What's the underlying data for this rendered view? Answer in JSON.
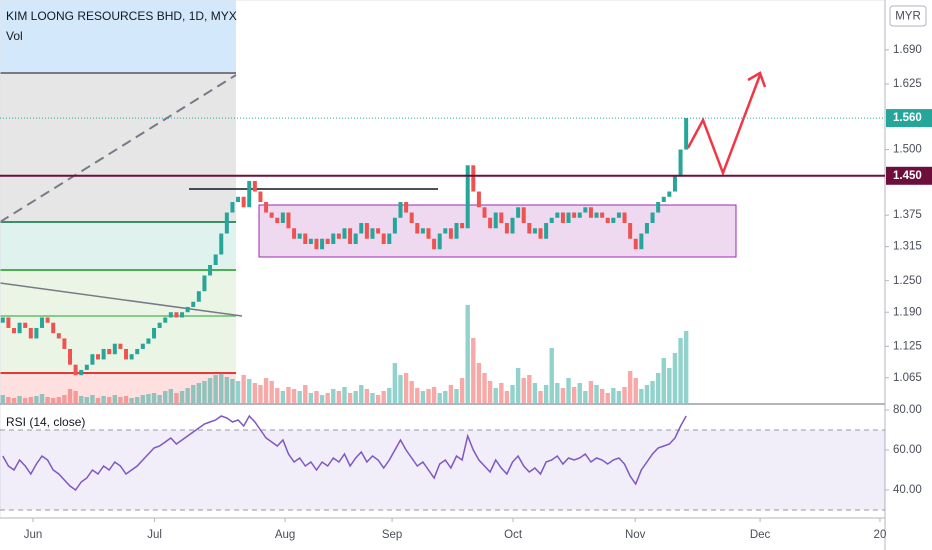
{
  "chart_data": {
    "type": "candlestick",
    "title": "KIM LOONG RESOURCES BHD, 1D, MYX",
    "subtitle": "Vol",
    "currency": "MYR",
    "up_color": "#26a69a",
    "down_color": "#ef5350",
    "xlim": [
      -0.5,
      157.5
    ],
    "xticks": [
      {
        "value": 5.4,
        "label": "Jun"
      },
      {
        "value": 27.1,
        "label": "Jul"
      },
      {
        "value": 50.4,
        "label": "Aug"
      },
      {
        "value": 69.5,
        "label": "Sep"
      },
      {
        "value": 91.1,
        "label": "Oct"
      },
      {
        "value": 112.9,
        "label": "Nov"
      },
      {
        "value": 135.2,
        "label": "Dec"
      },
      {
        "value": 156.6,
        "label": "20"
      }
    ],
    "ylim": [
      1.017,
      1.785
    ],
    "yticks": [
      {
        "value": 1.69,
        "label": "1.690"
      },
      {
        "value": 1.625,
        "label": "1.625"
      },
      {
        "value": 1.5,
        "label": "1.500"
      },
      {
        "value": 1.375,
        "label": "1.375"
      },
      {
        "value": 1.315,
        "label": "1.315"
      },
      {
        "value": 1.25,
        "label": "1.250"
      },
      {
        "value": 1.19,
        "label": "1.190"
      },
      {
        "value": 1.125,
        "label": "1.125"
      },
      {
        "value": 1.065,
        "label": "1.065"
      }
    ],
    "price_lines": [
      {
        "value": 1.56,
        "label": "1.560",
        "color": "#26a69a"
      },
      {
        "value": 1.45,
        "label": "1.450",
        "color": "#6d0f3a"
      }
    ],
    "open": [
      1.17,
      1.18,
      1.16,
      1.15,
      1.17,
      1.16,
      1.14,
      1.16,
      1.18,
      1.17,
      1.15,
      1.14,
      1.12,
      1.09,
      1.07,
      1.08,
      1.09,
      1.11,
      1.1,
      1.12,
      1.11,
      1.13,
      1.12,
      1.1,
      1.11,
      1.12,
      1.13,
      1.14,
      1.16,
      1.17,
      1.18,
      1.19,
      1.18,
      1.19,
      1.2,
      1.21,
      1.23,
      1.26,
      1.28,
      1.3,
      1.34,
      1.38,
      1.4,
      1.41,
      1.39,
      1.44,
      1.42,
      1.4,
      1.38,
      1.37,
      1.36,
      1.38,
      1.35,
      1.33,
      1.34,
      1.32,
      1.33,
      1.31,
      1.33,
      1.32,
      1.34,
      1.33,
      1.35,
      1.32,
      1.34,
      1.36,
      1.33,
      1.35,
      1.34,
      1.32,
      1.34,
      1.37,
      1.4,
      1.38,
      1.36,
      1.34,
      1.35,
      1.33,
      1.31,
      1.34,
      1.35,
      1.33,
      1.36,
      1.35,
      1.47,
      1.42,
      1.39,
      1.37,
      1.35,
      1.38,
      1.36,
      1.34,
      1.37,
      1.39,
      1.36,
      1.34,
      1.35,
      1.33,
      1.36,
      1.37,
      1.38,
      1.36,
      1.38,
      1.37,
      1.38,
      1.39,
      1.37,
      1.38,
      1.37,
      1.36,
      1.37,
      1.38,
      1.36,
      1.33,
      1.31,
      1.34,
      1.36,
      1.38,
      1.4,
      1.41,
      1.42,
      1.45,
      1.5
    ],
    "close": [
      1.18,
      1.16,
      1.15,
      1.17,
      1.16,
      1.14,
      1.16,
      1.18,
      1.17,
      1.15,
      1.14,
      1.12,
      1.09,
      1.07,
      1.08,
      1.09,
      1.11,
      1.1,
      1.12,
      1.11,
      1.13,
      1.12,
      1.1,
      1.11,
      1.12,
      1.13,
      1.14,
      1.16,
      1.17,
      1.18,
      1.19,
      1.18,
      1.19,
      1.2,
      1.21,
      1.23,
      1.26,
      1.28,
      1.3,
      1.34,
      1.38,
      1.4,
      1.41,
      1.39,
      1.44,
      1.42,
      1.4,
      1.38,
      1.37,
      1.36,
      1.38,
      1.35,
      1.33,
      1.34,
      1.32,
      1.33,
      1.31,
      1.33,
      1.32,
      1.34,
      1.33,
      1.35,
      1.32,
      1.34,
      1.36,
      1.33,
      1.35,
      1.34,
      1.32,
      1.34,
      1.37,
      1.4,
      1.38,
      1.36,
      1.34,
      1.35,
      1.33,
      1.31,
      1.34,
      1.35,
      1.33,
      1.36,
      1.35,
      1.47,
      1.42,
      1.39,
      1.37,
      1.35,
      1.38,
      1.36,
      1.34,
      1.37,
      1.39,
      1.36,
      1.34,
      1.35,
      1.33,
      1.36,
      1.37,
      1.38,
      1.36,
      1.38,
      1.37,
      1.38,
      1.39,
      1.37,
      1.38,
      1.37,
      1.36,
      1.37,
      1.38,
      1.36,
      1.33,
      1.31,
      1.34,
      1.36,
      1.38,
      1.4,
      1.41,
      1.42,
      1.45,
      1.5,
      1.56
    ],
    "volume": [
      8,
      6,
      5,
      7,
      5,
      6,
      7,
      9,
      6,
      5,
      6,
      8,
      14,
      12,
      7,
      6,
      8,
      5,
      7,
      6,
      8,
      6,
      7,
      5,
      6,
      8,
      9,
      10,
      8,
      12,
      14,
      10,
      12,
      15,
      18,
      20,
      22,
      25,
      28,
      30,
      26,
      24,
      22,
      28,
      24,
      20,
      18,
      25,
      22,
      15,
      12,
      16,
      14,
      12,
      18,
      10,
      12,
      8,
      10,
      14,
      12,
      16,
      10,
      12,
      18,
      14,
      10,
      8,
      12,
      15,
      40,
      28,
      30,
      22,
      15,
      12,
      14,
      16,
      10,
      12,
      18,
      14,
      25,
      98,
      65,
      40,
      30,
      22,
      15,
      20,
      12,
      18,
      35,
      25,
      28,
      20,
      12,
      18,
      55,
      20,
      15,
      25,
      16,
      20,
      12,
      22,
      18,
      14,
      10,
      15,
      12,
      16,
      32,
      25,
      14,
      18,
      22,
      30,
      45,
      35,
      50,
      65,
      72
    ],
    "rsi": {
      "title": "RSI (14, close)",
      "color": "#7e57c2",
      "ylim": [
        26,
        82.5
      ],
      "bands": [
        70,
        30
      ],
      "yticks": [
        {
          "value": 80,
          "label": "80.00"
        },
        {
          "value": 60,
          "label": "60.00"
        },
        {
          "value": 40,
          "label": "40.00"
        }
      ],
      "values": [
        57,
        52,
        50,
        55,
        52,
        48,
        53,
        57,
        55,
        50,
        48,
        45,
        42,
        40,
        44,
        46,
        50,
        48,
        52,
        50,
        54,
        52,
        48,
        50,
        52,
        55,
        58,
        61,
        62,
        64,
        66,
        63,
        65,
        67,
        69,
        71,
        73,
        74,
        75,
        77,
        76,
        74,
        75,
        72,
        77,
        74,
        70,
        66,
        64,
        62,
        65,
        58,
        54,
        56,
        52,
        54,
        50,
        54,
        52,
        56,
        54,
        58,
        52,
        56,
        59,
        54,
        57,
        55,
        51,
        55,
        60,
        65,
        60,
        56,
        52,
        54,
        50,
        46,
        53,
        55,
        51,
        57,
        55,
        67,
        60,
        55,
        52,
        49,
        55,
        51,
        48,
        54,
        57,
        52,
        49,
        51,
        48,
        54,
        55,
        57,
        53,
        56,
        55,
        56,
        58,
        54,
        56,
        55,
        53,
        55,
        56,
        53,
        47,
        43,
        50,
        54,
        58,
        61,
        62,
        63,
        66,
        72,
        77
      ]
    }
  }
}
